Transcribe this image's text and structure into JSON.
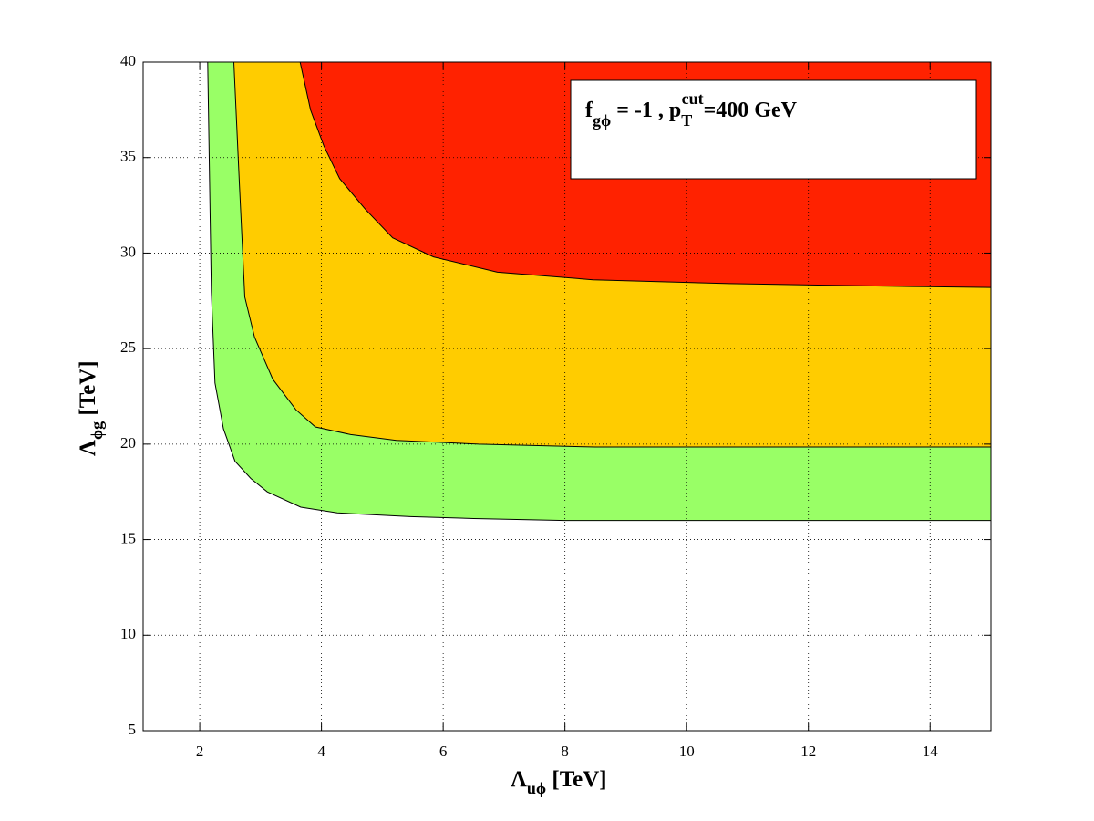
{
  "chart_data": {
    "type": "area",
    "xlabel": [
      "Λ",
      "uϕ",
      " [TeV]"
    ],
    "ylabel": [
      "Λ",
      "ϕg",
      " [TeV]"
    ],
    "annotation": [
      "f",
      "gϕ",
      " = -1 , p",
      "T",
      "cut",
      "=400 GeV"
    ],
    "xlim": [
      1.07,
      15
    ],
    "ylim": [
      5,
      40
    ],
    "xticks": [
      2,
      4,
      6,
      8,
      10,
      12,
      14
    ],
    "yticks": [
      5,
      10,
      15,
      20,
      25,
      30,
      35,
      40
    ],
    "grid": true,
    "series": [
      {
        "color": "#99ff66",
        "x": [
          2.13,
          2.19,
          2.25,
          2.39,
          2.58,
          2.84,
          3.11,
          3.66,
          4.26,
          5.46,
          6.5,
          8.0,
          15
        ],
        "values": [
          40,
          27.97,
          23.2,
          20.8,
          19.1,
          18.2,
          17.5,
          16.7,
          16.4,
          16.2,
          16.1,
          16.0,
          16.0
        ]
      },
      {
        "color": "#ffcc00",
        "x": [
          2.56,
          2.65,
          2.74,
          2.9,
          3.2,
          3.58,
          3.9,
          4.48,
          5.23,
          6.58,
          8.5,
          15
        ],
        "values": [
          40,
          33.7,
          27.7,
          25.6,
          23.4,
          21.8,
          20.9,
          20.5,
          20.2,
          20.0,
          19.85,
          19.85
        ]
      },
      {
        "color": "#ff2200",
        "x": [
          3.65,
          3.82,
          4.04,
          4.3,
          4.72,
          5.17,
          5.84,
          6.89,
          8.46,
          10.7,
          13.7,
          15
        ],
        "values": [
          40,
          37.5,
          35.6,
          33.9,
          32.3,
          30.8,
          29.8,
          29.0,
          28.6,
          28.4,
          28.25,
          28.2
        ]
      }
    ]
  }
}
